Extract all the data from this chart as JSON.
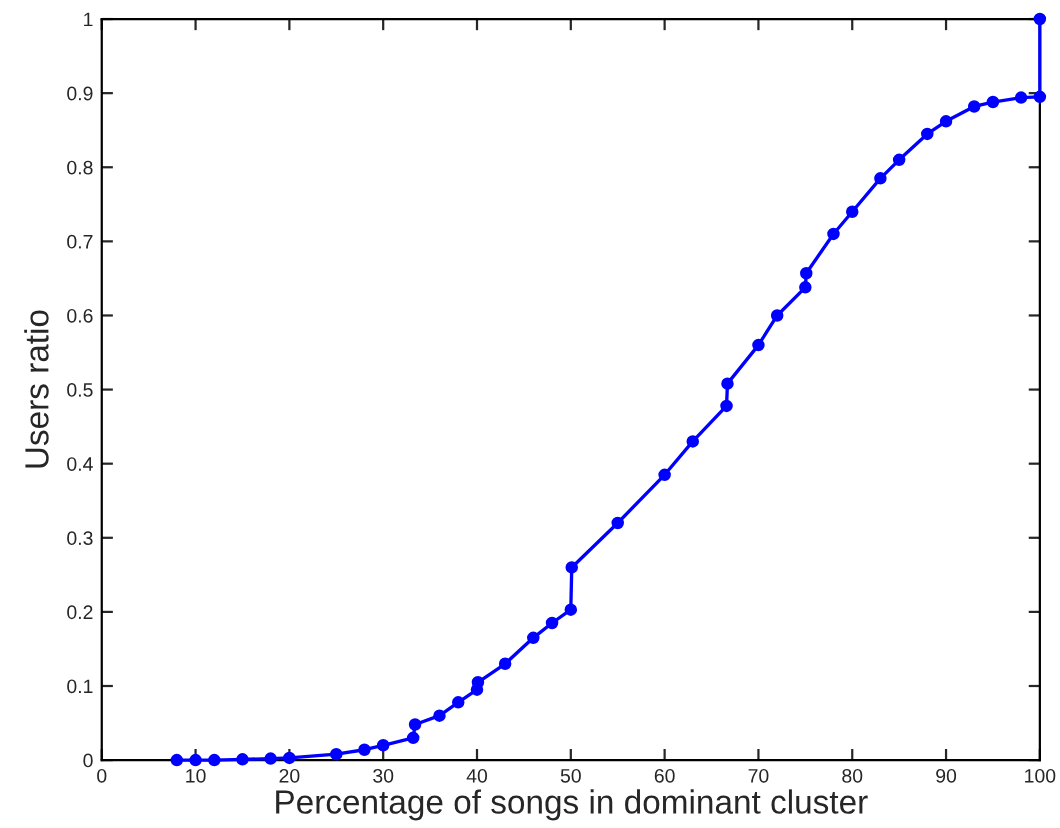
{
  "chart_data": {
    "type": "line",
    "xlabel": "Percentage of songs in dominant cluster",
    "ylabel": "Users ratio",
    "x": [
      8,
      10,
      12,
      15,
      18,
      20,
      25,
      28,
      30,
      33.2,
      33.4,
      36,
      38,
      40,
      40.1,
      43,
      46,
      48,
      50,
      50.1,
      55,
      60,
      63,
      66.6,
      66.7,
      70,
      72,
      75,
      75.1,
      78,
      80,
      83,
      85,
      88,
      90,
      93,
      95,
      98,
      100,
      100
    ],
    "series": [
      {
        "color": "#0000ff",
        "values": [
          0,
          0,
          0,
          0.001,
          0.002,
          0.003,
          0.008,
          0.014,
          0.02,
          0.03,
          0.048,
          0.06,
          0.078,
          0.095,
          0.105,
          0.13,
          0.165,
          0.185,
          0.203,
          0.26,
          0.32,
          0.385,
          0.43,
          0.478,
          0.508,
          0.56,
          0.6,
          0.638,
          0.657,
          0.71,
          0.74,
          0.785,
          0.81,
          0.845,
          0.862,
          0.882,
          0.888,
          0.894,
          0.895,
          1.0
        ]
      }
    ],
    "xlim": [
      0,
      100
    ],
    "xticks": [
      0,
      10,
      20,
      30,
      40,
      50,
      60,
      70,
      80,
      90,
      100
    ],
    "ylim": [
      0,
      1
    ],
    "yticks": [
      0,
      0.1,
      0.2,
      0.3,
      0.4,
      0.5,
      0.6,
      0.7,
      0.8,
      0.9,
      1
    ],
    "grid": false,
    "legend": false,
    "marker": "circle",
    "line_style": "solid"
  }
}
